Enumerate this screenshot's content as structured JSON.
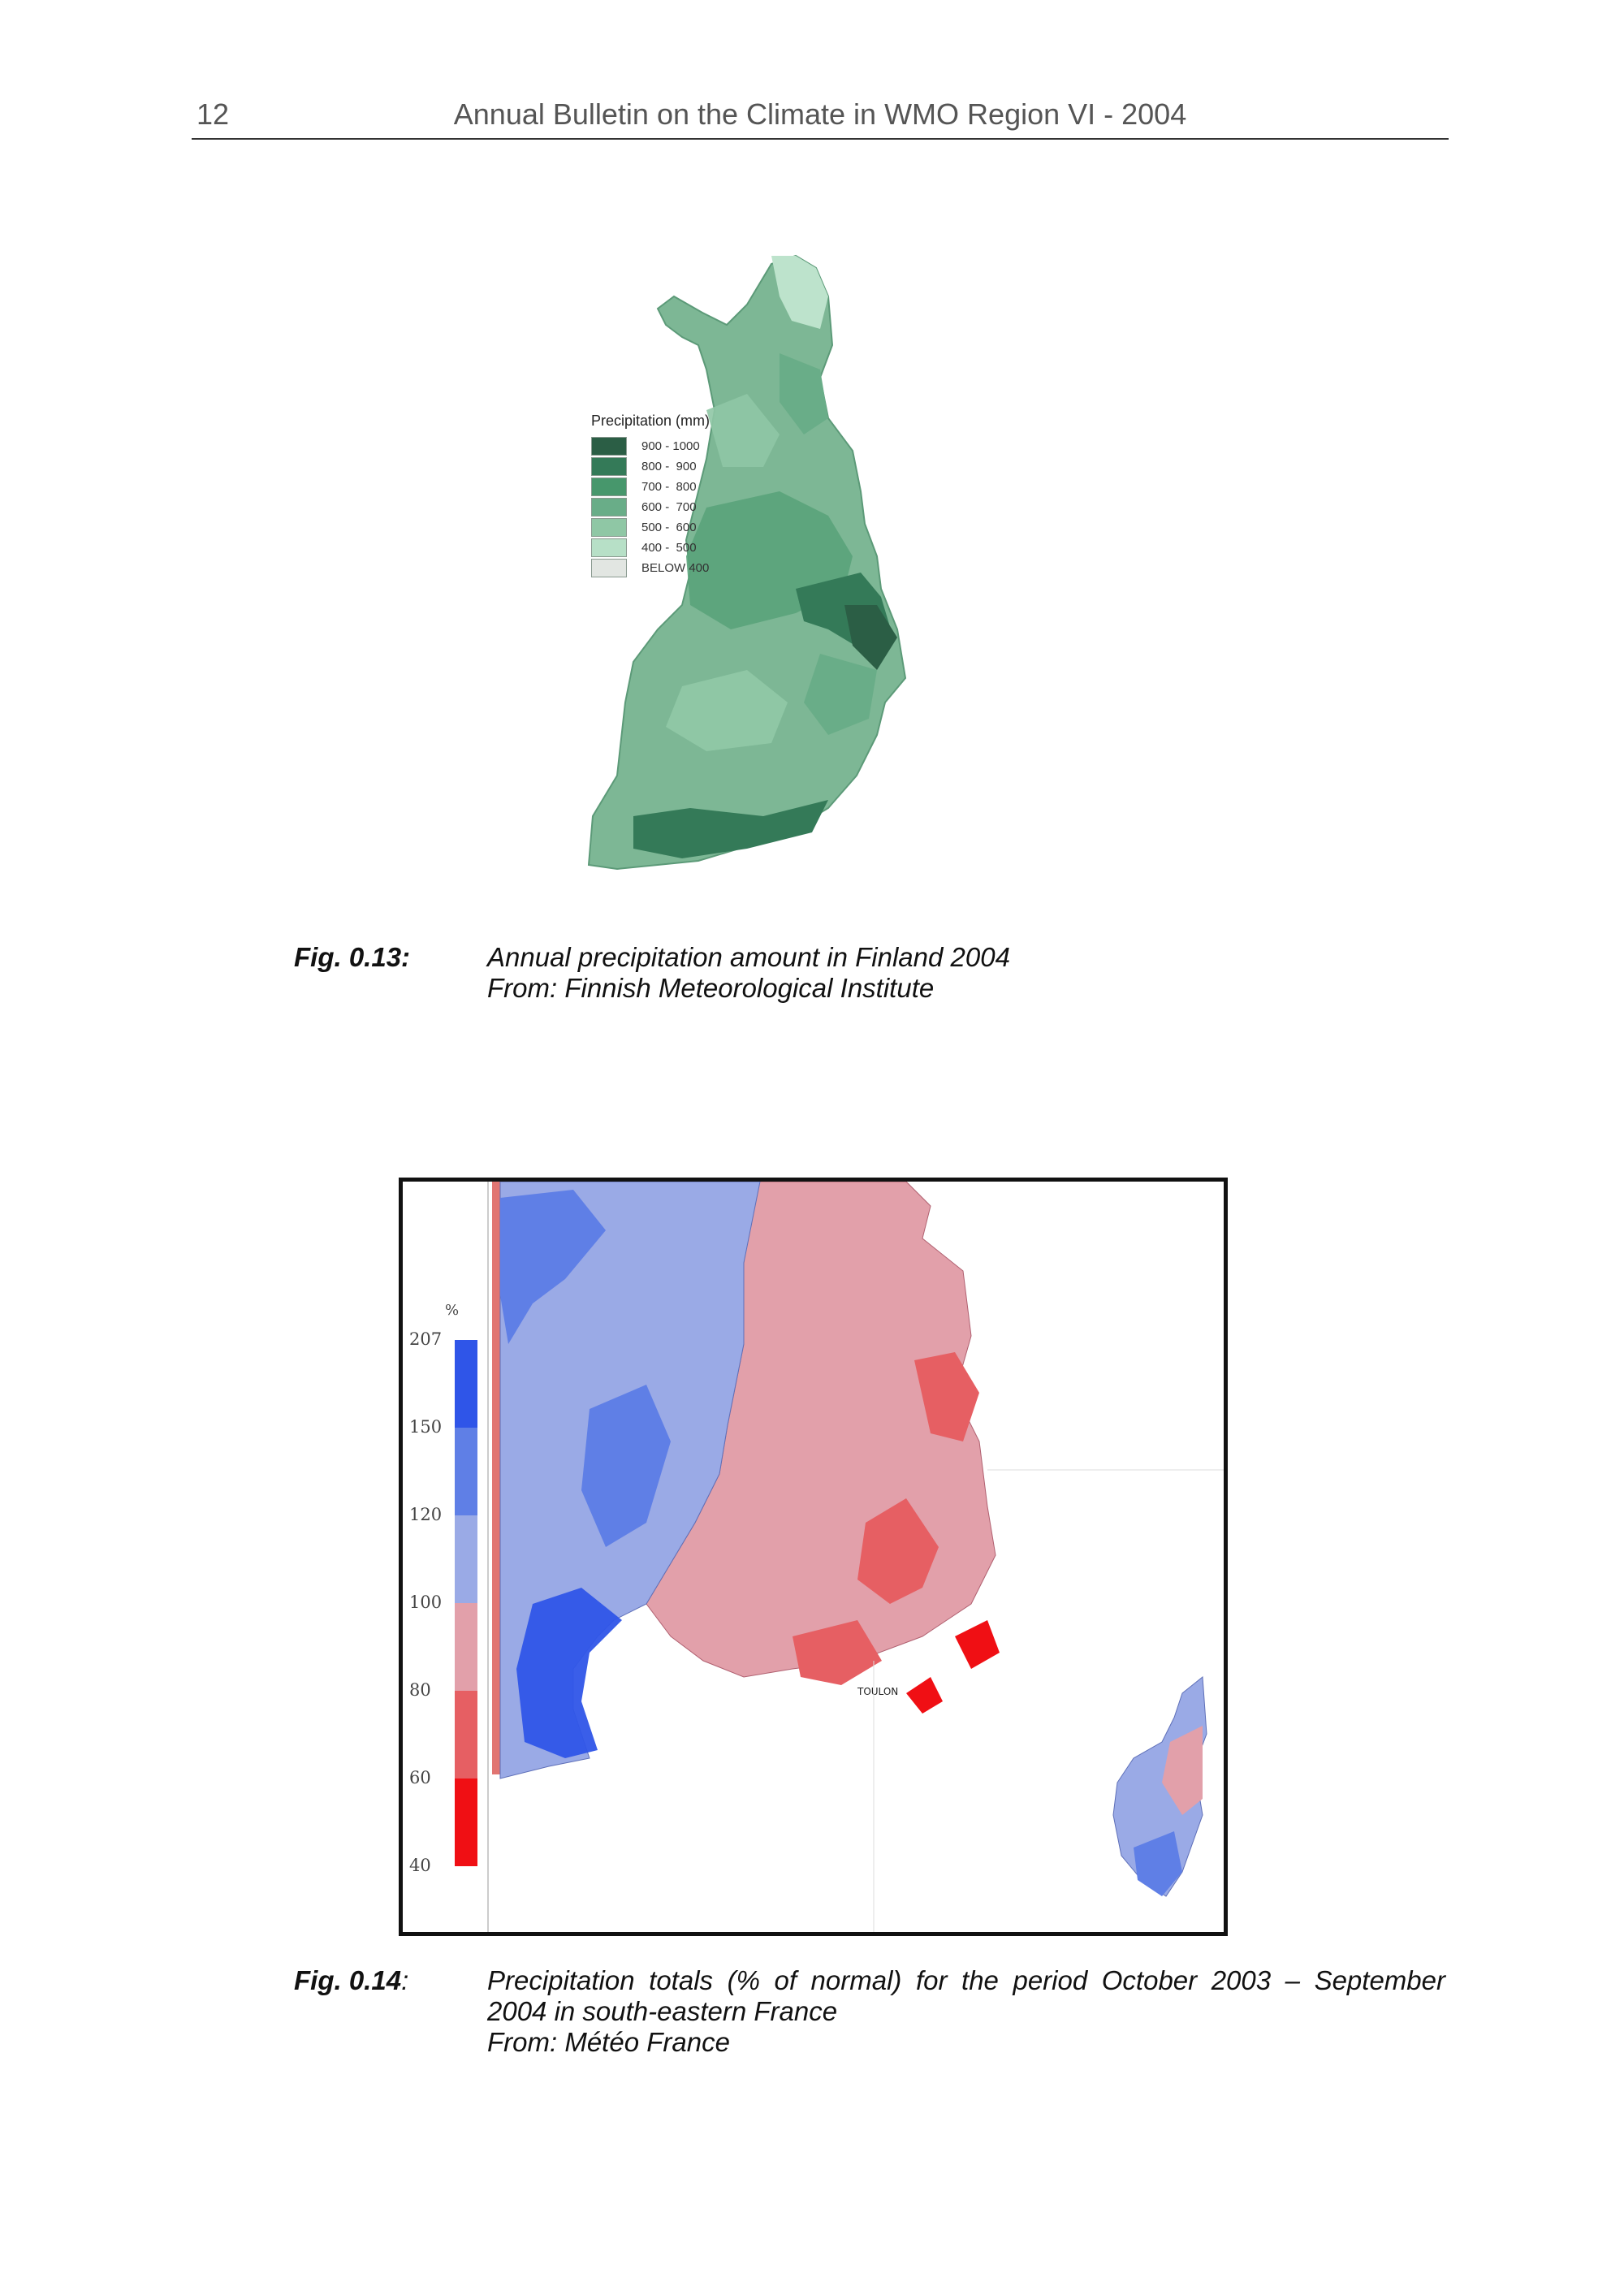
{
  "header": {
    "page_number": "12",
    "running_title": "Annual Bulletin on the Climate in WMO Region VI - 2004"
  },
  "figure1": {
    "legend_title": "Precipitation (mm)",
    "legend_items": [
      {
        "label": "900 - 1000",
        "color": "#2b5e45"
      },
      {
        "label": "800 -  900",
        "color": "#347a58"
      },
      {
        "label": "700 -  800",
        "color": "#47976c"
      },
      {
        "label": "600 -  700",
        "color": "#69ad88"
      },
      {
        "label": "500 -  600",
        "color": "#8fc7a5"
      },
      {
        "label": "400 -  500",
        "color": "#b7e0c7"
      },
      {
        "label": "BELOW 400",
        "color": "#e2e6e2"
      }
    ],
    "caption_label": "Fig. 0.13:",
    "caption_line1": "Annual precipitation amount in Finland 2004",
    "caption_line2": "From: Finnish Meteorological Institute"
  },
  "figure2": {
    "scale_unit": "%",
    "scale_ticks": [
      "207",
      "150",
      "120",
      "100",
      "80",
      "60",
      "40"
    ],
    "scale_colors": [
      "#2f55e8",
      "#5f7fe6",
      "#9aaae6",
      "#e2a0aa",
      "#e65f63",
      "#f00f14"
    ],
    "map_label": "TOULON",
    "caption_label": "Fig. 0.14",
    "caption_colon": ":",
    "caption_line1": "Precipitation totals (% of normal) for the period October 2003 – September",
    "caption_line2": "2004 in south-eastern France",
    "caption_line3": "From: Météo France"
  }
}
